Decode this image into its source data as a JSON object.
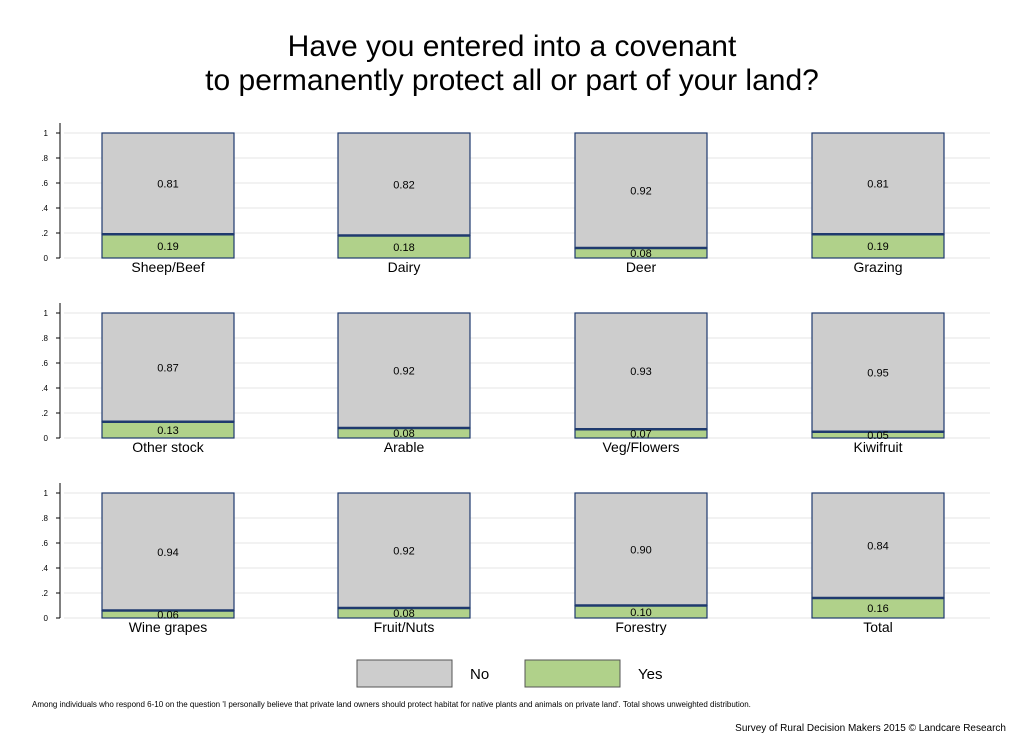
{
  "title_line1": "Have you entered into a covenant",
  "title_line2": "to permanently protect all or part of your land?",
  "chart_data": {
    "type": "bar",
    "stacked": true,
    "layout": "3x4 small multiples",
    "ylim": [
      0,
      1
    ],
    "yticks": [
      0,
      0.2,
      0.4,
      0.6,
      0.8,
      1
    ],
    "ytick_labels": [
      "0",
      ".2",
      ".4",
      ".6",
      ".8",
      "1"
    ],
    "grid": true,
    "series": [
      {
        "name": "No",
        "color": "#cdcdcd"
      },
      {
        "name": "Yes",
        "color": "#b0d18a"
      }
    ],
    "panels": [
      {
        "category": "Sheep/Beef",
        "no": 0.81,
        "yes": 0.19,
        "no_label": "0.81",
        "yes_label": "0.19"
      },
      {
        "category": "Dairy",
        "no": 0.82,
        "yes": 0.18,
        "no_label": "0.82",
        "yes_label": "0.18"
      },
      {
        "category": "Deer",
        "no": 0.92,
        "yes": 0.08,
        "no_label": "0.92",
        "yes_label": "0.08"
      },
      {
        "category": "Grazing",
        "no": 0.81,
        "yes": 0.19,
        "no_label": "0.81",
        "yes_label": "0.19"
      },
      {
        "category": "Other stock",
        "no": 0.87,
        "yes": 0.13,
        "no_label": "0.87",
        "yes_label": "0.13"
      },
      {
        "category": "Arable",
        "no": 0.92,
        "yes": 0.08,
        "no_label": "0.92",
        "yes_label": "0.08"
      },
      {
        "category": "Veg/Flowers",
        "no": 0.93,
        "yes": 0.07,
        "no_label": "0.93",
        "yes_label": "0.07"
      },
      {
        "category": "Kiwifruit",
        "no": 0.95,
        "yes": 0.05,
        "no_label": "0.95",
        "yes_label": "0.05"
      },
      {
        "category": "Wine grapes",
        "no": 0.94,
        "yes": 0.06,
        "no_label": "0.94",
        "yes_label": "0.06"
      },
      {
        "category": "Fruit/Nuts",
        "no": 0.92,
        "yes": 0.08,
        "no_label": "0.92",
        "yes_label": "0.08"
      },
      {
        "category": "Forestry",
        "no": 0.9,
        "yes": 0.1,
        "no_label": "0.90",
        "yes_label": "0.10"
      },
      {
        "category": "Total",
        "no": 0.84,
        "yes": 0.16,
        "no_label": "0.84",
        "yes_label": "0.16"
      }
    ],
    "legend": {
      "position": "bottom",
      "items": [
        "No",
        "Yes"
      ]
    }
  },
  "note": "Among individuals who respond 6-10 on the question 'I personally believe that private land owners should protect habitat for native plants and animals on private land'. Total shows unweighted distribution.",
  "credit": "Survey of Rural Decision Makers 2015 © Landcare Research"
}
